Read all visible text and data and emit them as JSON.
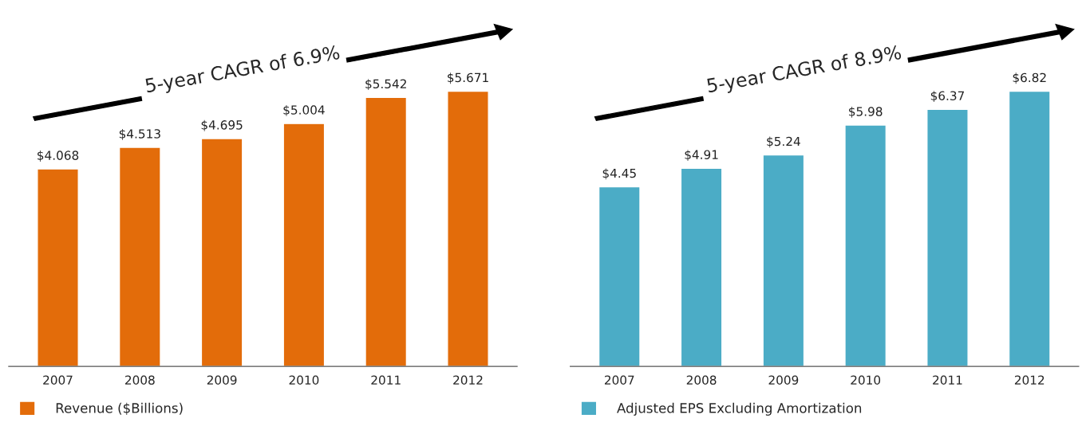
{
  "chart_data": [
    {
      "type": "bar",
      "categories": [
        "2007",
        "2008",
        "2009",
        "2010",
        "2011",
        "2012"
      ],
      "series": [
        {
          "name": "Revenue ($Billions)",
          "color": "#e36c0a",
          "values": [
            4.068,
            4.513,
            4.695,
            5.004,
            5.542,
            5.671
          ],
          "value_labels": [
            "$4.068",
            "$4.513",
            "$4.695",
            "$5.004",
            "$5.542",
            "$5.671"
          ]
        }
      ],
      "annotations": [
        "5-year CAGR of 6.9%"
      ],
      "legend": "bottom",
      "grid": false,
      "tick_labels": "x"
    },
    {
      "type": "bar",
      "categories": [
        "2007",
        "2008",
        "2009",
        "2010",
        "2011",
        "2012"
      ],
      "series": [
        {
          "name": "Adjusted EPS Excluding Amortization",
          "color": "#4bacc6",
          "values": [
            4.45,
            4.91,
            5.24,
            5.98,
            6.37,
            6.82
          ],
          "value_labels": [
            "$4.45",
            "$4.91",
            "$5.24",
            "$5.98",
            "$6.37",
            "$6.82"
          ]
        }
      ],
      "annotations": [
        "5-year CAGR of 8.9%"
      ],
      "legend": "bottom",
      "grid": false,
      "tick_labels": "x"
    }
  ]
}
